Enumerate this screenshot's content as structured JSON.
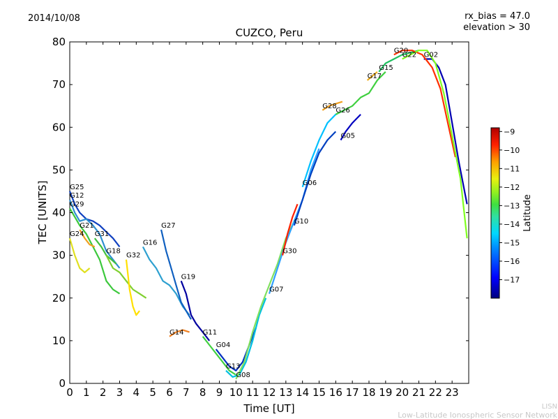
{
  "header": {
    "date": "2014/10/08",
    "rx_bias": "rx_bias = 47.0",
    "elevation": "elevation > 30"
  },
  "footer": {
    "org_short": "LISN",
    "org_long": "Low-Latitude Ionospheric Sensor Network"
  },
  "chart_data": {
    "type": "line",
    "title": "CUZCO, Peru",
    "xlabel": "Time [UT]",
    "ylabel": "TEC [UNITS]",
    "xlim": [
      0,
      24
    ],
    "ylim": [
      0,
      80
    ],
    "xticks": [
      0,
      1,
      2,
      3,
      4,
      5,
      6,
      7,
      8,
      9,
      10,
      11,
      12,
      13,
      14,
      15,
      16,
      17,
      18,
      19,
      20,
      21,
      22,
      23
    ],
    "yticks": [
      0,
      10,
      20,
      30,
      40,
      50,
      60,
      70,
      80
    ],
    "colorbar": {
      "label": "Latitude",
      "range": [
        -18,
        -8.8
      ],
      "ticks": [
        -9,
        -10,
        -11,
        -12,
        -13,
        -14,
        -15,
        -16,
        -17
      ],
      "colors": [
        "#00007f",
        "#0000ff",
        "#0080ff",
        "#00d8ff",
        "#30ff c8",
        "#80ff80",
        "#c8ff30",
        "#ffe000",
        "#ff8000",
        "#ff1000",
        "#7f0000"
      ]
    },
    "series": [
      {
        "name": "G25",
        "color": "#1040c0",
        "points": [
          [
            0,
            45
          ],
          [
            0.3,
            42
          ],
          [
            0.6,
            40
          ],
          [
            1,
            38.5
          ],
          [
            1.4,
            38
          ],
          [
            1.8,
            37
          ],
          [
            2.2,
            35.5
          ],
          [
            2.6,
            34
          ],
          [
            3,
            32
          ]
        ]
      },
      {
        "name": "G12",
        "color": "#2e8fd0",
        "points": [
          [
            0,
            43
          ],
          [
            0.3,
            40
          ],
          [
            0.6,
            38
          ],
          [
            1,
            38.5
          ],
          [
            1.4,
            37
          ],
          [
            1.8,
            35
          ],
          [
            2.2,
            31
          ],
          [
            2.6,
            29
          ],
          [
            3,
            27
          ]
        ]
      },
      {
        "name": "G29",
        "color": "#3cc83c",
        "points": [
          [
            0,
            41
          ],
          [
            0.3,
            39
          ],
          [
            0.6,
            37
          ],
          [
            1,
            35
          ],
          [
            1.4,
            32
          ],
          [
            1.8,
            29
          ],
          [
            2.2,
            24
          ],
          [
            2.6,
            22
          ],
          [
            3,
            21
          ]
        ]
      },
      {
        "name": "G24",
        "color": "#e0e020",
        "points": [
          [
            0,
            34
          ],
          [
            0.3,
            30
          ],
          [
            0.6,
            27
          ],
          [
            0.9,
            26
          ],
          [
            1.2,
            27
          ]
        ]
      },
      {
        "name": "G21",
        "color": "#f0a020",
        "points": [
          [
            0.6,
            36
          ],
          [
            0.9,
            34
          ],
          [
            1.2,
            32.5
          ],
          [
            1.5,
            32
          ]
        ]
      },
      {
        "name": "G31",
        "color": "#40c040",
        "points": [
          [
            1.5,
            34
          ],
          [
            1.9,
            32
          ],
          [
            2.2,
            30
          ],
          [
            2.5,
            29
          ],
          [
            2.8,
            28
          ]
        ]
      },
      {
        "name": "G18",
        "color": "#80d030",
        "points": [
          [
            2.2,
            30
          ],
          [
            2.6,
            27
          ],
          [
            3,
            26
          ],
          [
            3.4,
            24
          ],
          [
            3.8,
            22
          ],
          [
            4.2,
            21
          ],
          [
            4.6,
            20
          ]
        ]
      },
      {
        "name": "G32",
        "color": "#ffe000",
        "points": [
          [
            3.4,
            29
          ],
          [
            3.6,
            22
          ],
          [
            3.8,
            18
          ],
          [
            4.0,
            16
          ],
          [
            4.2,
            17
          ]
        ]
      },
      {
        "name": "G16",
        "color": "#2ea0d0",
        "points": [
          [
            4.4,
            32
          ],
          [
            4.8,
            29
          ],
          [
            5.2,
            27
          ],
          [
            5.6,
            24
          ],
          [
            6,
            23
          ],
          [
            6.4,
            21
          ],
          [
            6.8,
            18
          ],
          [
            7.2,
            16
          ]
        ]
      },
      {
        "name": "G27",
        "color": "#1060c0",
        "points": [
          [
            5.5,
            36
          ],
          [
            5.8,
            31
          ],
          [
            6.1,
            27
          ],
          [
            6.4,
            23
          ],
          [
            6.7,
            19
          ],
          [
            7,
            17
          ],
          [
            7.3,
            15
          ]
        ]
      },
      {
        "name": "G19",
        "color": "#0000a0",
        "points": [
          [
            6.7,
            24
          ],
          [
            7,
            21
          ],
          [
            7.3,
            16
          ],
          [
            7.6,
            14
          ],
          [
            8,
            12
          ],
          [
            8.4,
            10
          ]
        ]
      },
      {
        "name": "G14",
        "color": "#f08020",
        "points": [
          [
            6,
            11
          ],
          [
            6.4,
            12
          ],
          [
            6.8,
            12.5
          ],
          [
            7.2,
            12
          ]
        ]
      },
      {
        "name": "G11",
        "color": "#40d040",
        "points": [
          [
            8,
            11
          ],
          [
            8.4,
            9
          ],
          [
            8.8,
            7
          ],
          [
            9.2,
            5
          ],
          [
            9.6,
            3
          ],
          [
            10,
            2
          ]
        ]
      },
      {
        "name": "G04",
        "color": "#0030c0",
        "points": [
          [
            8.8,
            8
          ],
          [
            9.2,
            6
          ],
          [
            9.6,
            4
          ],
          [
            10,
            3
          ],
          [
            10.4,
            5
          ],
          [
            10.8,
            9
          ],
          [
            11.2,
            13
          ]
        ]
      },
      {
        "name": "G13",
        "color": "#00c0e0",
        "points": [
          [
            9.4,
            3
          ],
          [
            9.8,
            1.5
          ],
          [
            10.2,
            2
          ],
          [
            10.6,
            5
          ],
          [
            11,
            10
          ],
          [
            11.4,
            16
          ],
          [
            11.8,
            20
          ]
        ]
      },
      {
        "name": "G08",
        "color": "#80e060",
        "points": [
          [
            10,
            1
          ],
          [
            10.5,
            5
          ],
          [
            11,
            12
          ],
          [
            11.5,
            18
          ],
          [
            12,
            23
          ],
          [
            12.5,
            28
          ],
          [
            13,
            34
          ],
          [
            13.5,
            38
          ]
        ]
      },
      {
        "name": "G07",
        "color": "#30a0ff",
        "points": [
          [
            12,
            21
          ],
          [
            12.5,
            27
          ],
          [
            13,
            33
          ],
          [
            13.5,
            38
          ],
          [
            14,
            43
          ],
          [
            14.5,
            50
          ],
          [
            15,
            55
          ]
        ]
      },
      {
        "name": "G30",
        "color": "#ff2000",
        "points": [
          [
            12.8,
            30
          ],
          [
            13.1,
            35
          ],
          [
            13.4,
            39
          ],
          [
            13.7,
            42
          ]
        ]
      },
      {
        "name": "G10",
        "color": "#0040c0",
        "points": [
          [
            13.5,
            37
          ],
          [
            14,
            43
          ],
          [
            14.5,
            49
          ],
          [
            15,
            54
          ],
          [
            15.5,
            57
          ],
          [
            16,
            59
          ]
        ]
      },
      {
        "name": "G06",
        "color": "#00c0ff",
        "points": [
          [
            14,
            46
          ],
          [
            14.5,
            52
          ],
          [
            15,
            57
          ],
          [
            15.5,
            61
          ],
          [
            16,
            63
          ],
          [
            16.5,
            64
          ]
        ]
      },
      {
        "name": "G28",
        "color": "#f0a020",
        "points": [
          [
            15.2,
            64
          ],
          [
            15.6,
            65
          ],
          [
            16,
            65.5
          ],
          [
            16.4,
            66
          ]
        ]
      },
      {
        "name": "G05",
        "color": "#0000c0",
        "points": [
          [
            16.3,
            57
          ],
          [
            16.6,
            59
          ],
          [
            17,
            61
          ],
          [
            17.5,
            63
          ]
        ]
      },
      {
        "name": "G26",
        "color": "#40d040",
        "points": [
          [
            16,
            63
          ],
          [
            16.5,
            64
          ],
          [
            17,
            65
          ],
          [
            17.5,
            67
          ],
          [
            18,
            68
          ],
          [
            18.5,
            71
          ],
          [
            19,
            73
          ]
        ]
      },
      {
        "name": "G17",
        "color": "#f0b020",
        "points": [
          [
            17.9,
            71
          ],
          [
            18.2,
            72
          ],
          [
            18.5,
            73
          ]
        ]
      },
      {
        "name": "G15",
        "color": "#20c060",
        "points": [
          [
            18.6,
            73
          ],
          [
            19,
            75
          ],
          [
            19.5,
            76
          ],
          [
            20,
            77
          ],
          [
            20.5,
            77.5
          ],
          [
            21,
            78
          ]
        ]
      },
      {
        "name": "G02",
        "color": "#0000b0",
        "points": [
          [
            21.3,
            76
          ],
          [
            21.8,
            76
          ],
          [
            22.2,
            74
          ],
          [
            22.6,
            70
          ],
          [
            23,
            61
          ],
          [
            23.4,
            52
          ],
          [
            23.9,
            42
          ]
        ]
      },
      {
        "name": "G20",
        "color": "#ff3000",
        "points": [
          [
            19.5,
            77
          ],
          [
            20,
            78
          ],
          [
            20.6,
            78
          ],
          [
            21.2,
            77
          ],
          [
            21.8,
            74
          ],
          [
            22.3,
            69
          ],
          [
            22.8,
            60
          ],
          [
            23.2,
            53
          ]
        ]
      },
      {
        "name": "G22",
        "color": "#80ff20",
        "points": [
          [
            20,
            76
          ],
          [
            20.5,
            77
          ],
          [
            21,
            78
          ],
          [
            21.5,
            78
          ],
          [
            22,
            75
          ],
          [
            22.5,
            68
          ],
          [
            23,
            58
          ],
          [
            23.5,
            48
          ],
          [
            23.9,
            34
          ]
        ]
      }
    ]
  }
}
